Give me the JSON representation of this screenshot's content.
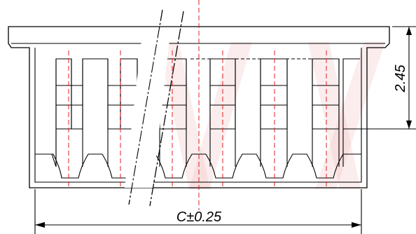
{
  "drawing": {
    "type": "technical-drawing",
    "subject": "connector-housing-side-view",
    "watermark_color": "#f4c4c4",
    "centerline_color": "#e02020",
    "line_color": "#000000"
  },
  "dimensions": {
    "height_label": "2.45",
    "width_label": "C±0.25"
  }
}
